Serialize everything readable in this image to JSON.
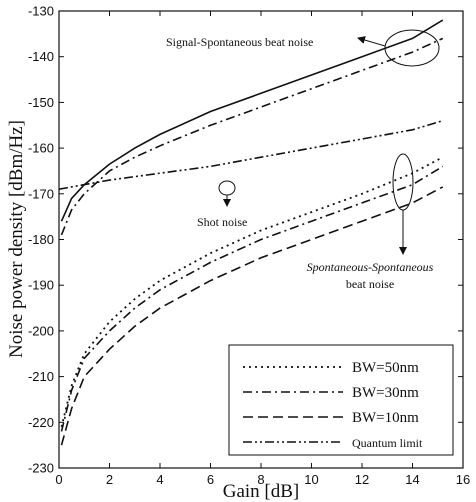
{
  "chart_data": {
    "type": "line",
    "title": "",
    "xlabel": "Gain [dB]",
    "ylabel": "Noise power density [dBm/Hz]",
    "xlim": [
      0,
      16
    ],
    "ylim": [
      -230,
      -130
    ],
    "x_ticks": [
      "0",
      "2",
      "4",
      "6",
      "8",
      "10",
      "12",
      "14",
      "16"
    ],
    "y_ticks": [
      "-130",
      "-140",
      "-150",
      "-160",
      "-170",
      "-180",
      "-190",
      "-200",
      "-210",
      "-220",
      "-230"
    ],
    "grid": false,
    "legend_position": "bottom-right",
    "series": [
      {
        "name": "",
        "group": "signal-spontaneous",
        "bw": "50nm",
        "style": "solid",
        "x": [
          0.1,
          0.5,
          1.0,
          2.0,
          3.0,
          4.0,
          6.0,
          8.0,
          10.0,
          12.0,
          14.0,
          15.2
        ],
        "y": [
          -176,
          -171,
          -168,
          -163.5,
          -160,
          -157,
          -152,
          -148,
          -144,
          -140,
          -136,
          -132
        ]
      },
      {
        "name": "",
        "group": "signal-spontaneous",
        "bw": "30nm",
        "style": "dash-dot",
        "x": [
          0.1,
          0.5,
          1.0,
          2.0,
          3.0,
          4.0,
          6.0,
          8.0,
          10.0,
          12.0,
          14.0,
          15.2
        ],
        "y": [
          -179,
          -173.5,
          -170,
          -165,
          -162,
          -159.5,
          -155,
          -151,
          -147,
          -143,
          -139,
          -136
        ]
      },
      {
        "name": "",
        "group": "shot-noise",
        "style": "dash-dot-dot",
        "x": [
          0,
          2,
          4,
          6,
          8,
          10,
          12,
          14,
          15.2
        ],
        "y": [
          -169,
          -167,
          -165.5,
          -164,
          -162,
          -160,
          -158,
          -156,
          -154
        ]
      },
      {
        "name": "BW=50nm",
        "group": "spontaneous-spontaneous",
        "style": "dotted",
        "x": [
          0.1,
          0.5,
          1.0,
          2.0,
          3.0,
          4.0,
          6.0,
          8.0,
          10.0,
          12.0,
          14.0,
          15.2
        ],
        "y": [
          -221,
          -212,
          -205,
          -198,
          -193,
          -189,
          -183,
          -178,
          -174,
          -170,
          -165.5,
          -162
        ]
      },
      {
        "name": "BW=30nm",
        "group": "spontaneous-spontaneous",
        "style": "dash-dot",
        "x": [
          0.1,
          0.5,
          1.0,
          2.0,
          3.0,
          4.0,
          6.0,
          8.0,
          10.0,
          12.0,
          14.0,
          15.2
        ],
        "y": [
          -222,
          -213,
          -206,
          -200,
          -195,
          -191,
          -185,
          -180,
          -176,
          -172,
          -168,
          -164
        ]
      },
      {
        "name": "BW=10nm",
        "group": "spontaneous-spontaneous",
        "style": "dashed",
        "x": [
          0.1,
          0.5,
          1.0,
          2.0,
          3.0,
          4.0,
          6.0,
          8.0,
          10.0,
          12.0,
          14.0,
          15.2
        ],
        "y": [
          -225,
          -217,
          -210,
          -204,
          -199,
          -195,
          -189,
          -184,
          -180,
          -176,
          -172,
          -168.5
        ]
      }
    ],
    "legend": [
      {
        "label": "BW=50nm",
        "style": "dotted"
      },
      {
        "label": "BW=30nm",
        "style": "dash-dot"
      },
      {
        "label": "BW=10nm",
        "style": "dashed"
      },
      {
        "label": "Quantum limit",
        "style": "dash-dot-dot"
      }
    ],
    "annotations": {
      "signal_spontaneous": "Signal-Spontaneous beat noise",
      "shot": "Shot noise",
      "spsp_line1": "Spontaneous-Spontaneous",
      "spsp_line2": "beat noise"
    }
  }
}
